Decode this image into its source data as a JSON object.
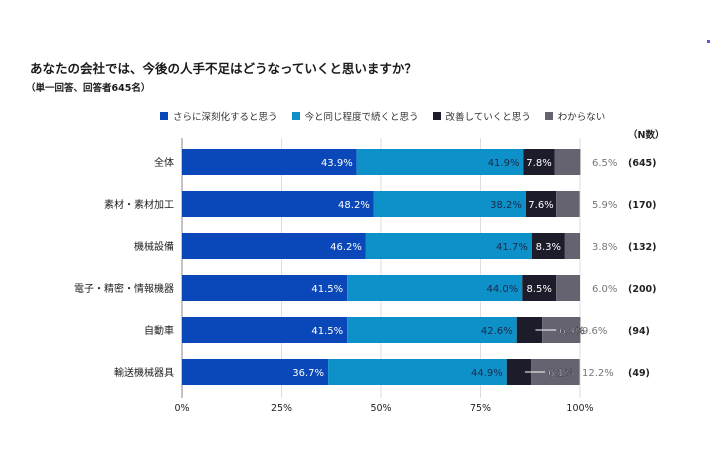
{
  "chart_data": {
    "type": "bar",
    "orientation": "horizontal",
    "stacked": true,
    "title": "あなたの会社では、今後の人手不足はどうなっていくと思いますか？",
    "subtitle": "（単一回答、回答者645名）",
    "categories": [
      "全体",
      "素材・素材加工",
      "機械設備",
      "電子・精密・情報機器",
      "自動車",
      "輸送機械器具"
    ],
    "n_header": "（N数）",
    "n_values": [
      "(645)",
      "(170)",
      "(132)",
      "(200)",
      "(94)",
      "(49)"
    ],
    "series": [
      {
        "name": "さらに深刻化すると思う",
        "color": "#0a47b8",
        "label_color": "#ffffff",
        "values": [
          43.9,
          48.2,
          46.2,
          41.5,
          41.5,
          36.7
        ]
      },
      {
        "name": "今と同じ程度で続くと思う",
        "color": "#0e90c9",
        "label_color": "#1b2a4a",
        "values": [
          41.9,
          38.2,
          41.7,
          44.0,
          42.6,
          44.9
        ]
      },
      {
        "name": "改善していくと思う",
        "color": "#1d1c2b",
        "label_color": "#ffffff",
        "values": [
          7.8,
          7.6,
          8.3,
          8.5,
          6.4,
          6.1
        ]
      },
      {
        "name": "わからない",
        "color": "#64636f",
        "label_color": "#7a7a7a",
        "values": [
          6.5,
          5.9,
          3.8,
          6.0,
          9.6,
          12.2
        ]
      }
    ],
    "xlim": [
      0,
      100
    ],
    "xticks": [
      "0%",
      "25%",
      "50%",
      "75%",
      "100%"
    ],
    "grid": true,
    "legend_position": "top"
  }
}
